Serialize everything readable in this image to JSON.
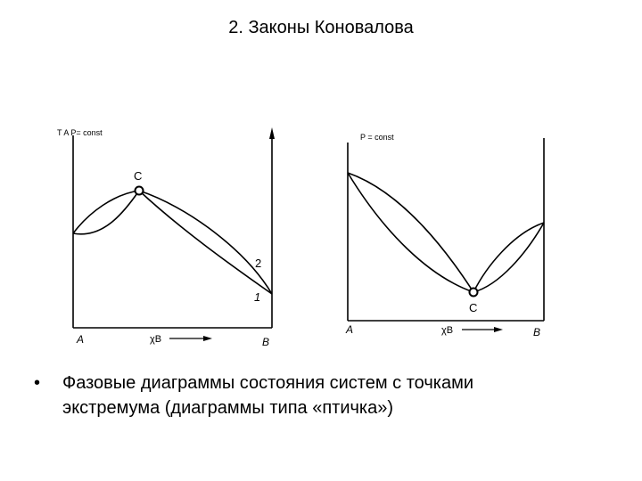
{
  "slide": {
    "title": "2. Законы Коновалова",
    "bullet_symbol": "•",
    "bullet_text_line1": "Фазовые диаграммы состояния систем с точками",
    "bullet_text_line2": "экстремума (диаграммы типа «птичка»)"
  },
  "diagram_left": {
    "axis_label_left": "T A  P= const",
    "point_label": "C",
    "curve_label_upper": "2",
    "curve_label_lower": "1",
    "x_left": "A",
    "x_mid": "χB",
    "x_right": "B"
  },
  "diagram_right": {
    "axis_label_top": "P = const",
    "point_label": "C",
    "x_left": "A",
    "x_mid": "χB",
    "x_right": "B"
  }
}
